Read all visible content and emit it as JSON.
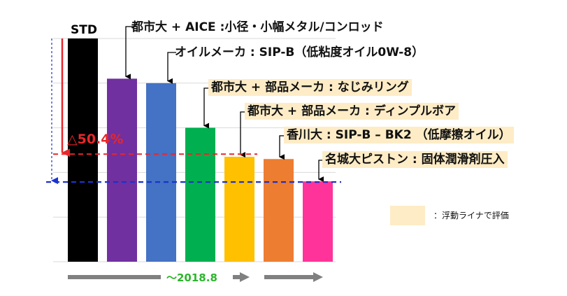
{
  "chart_data": {
    "type": "bar",
    "categories": [
      "STD",
      "都市大 + AICE :小径・小幅メタル/コンロッド",
      "オイルメーカ : SIP-B（低粘度オイル0W-8）",
      "都市大 + 部品メーカ : なじみリング",
      "都市大 + 部品メーカ : ディンプルボア",
      "香川大 : SIP-B – BK2 （低摩擦オイル）",
      "名城大ピストン : 固体潤滑剤圧入"
    ],
    "values": [
      100,
      82,
      80,
      60,
      47,
      46,
      36
    ],
    "colors": [
      "#000000",
      "#7030a0",
      "#4472c4",
      "#00b050",
      "#ffc000",
      "#ed7d31",
      "#ff3399"
    ],
    "highlighted": [
      false,
      false,
      false,
      true,
      true,
      true,
      true
    ],
    "ylim": [
      0,
      100
    ],
    "grid": true,
    "annotations": {
      "reduction_label": "△50.4%",
      "period_label": "～2018.8"
    },
    "legend": {
      "label": "：浮動ライナで評価",
      "swatch_color": "#fdecc6",
      "position": "right"
    }
  }
}
